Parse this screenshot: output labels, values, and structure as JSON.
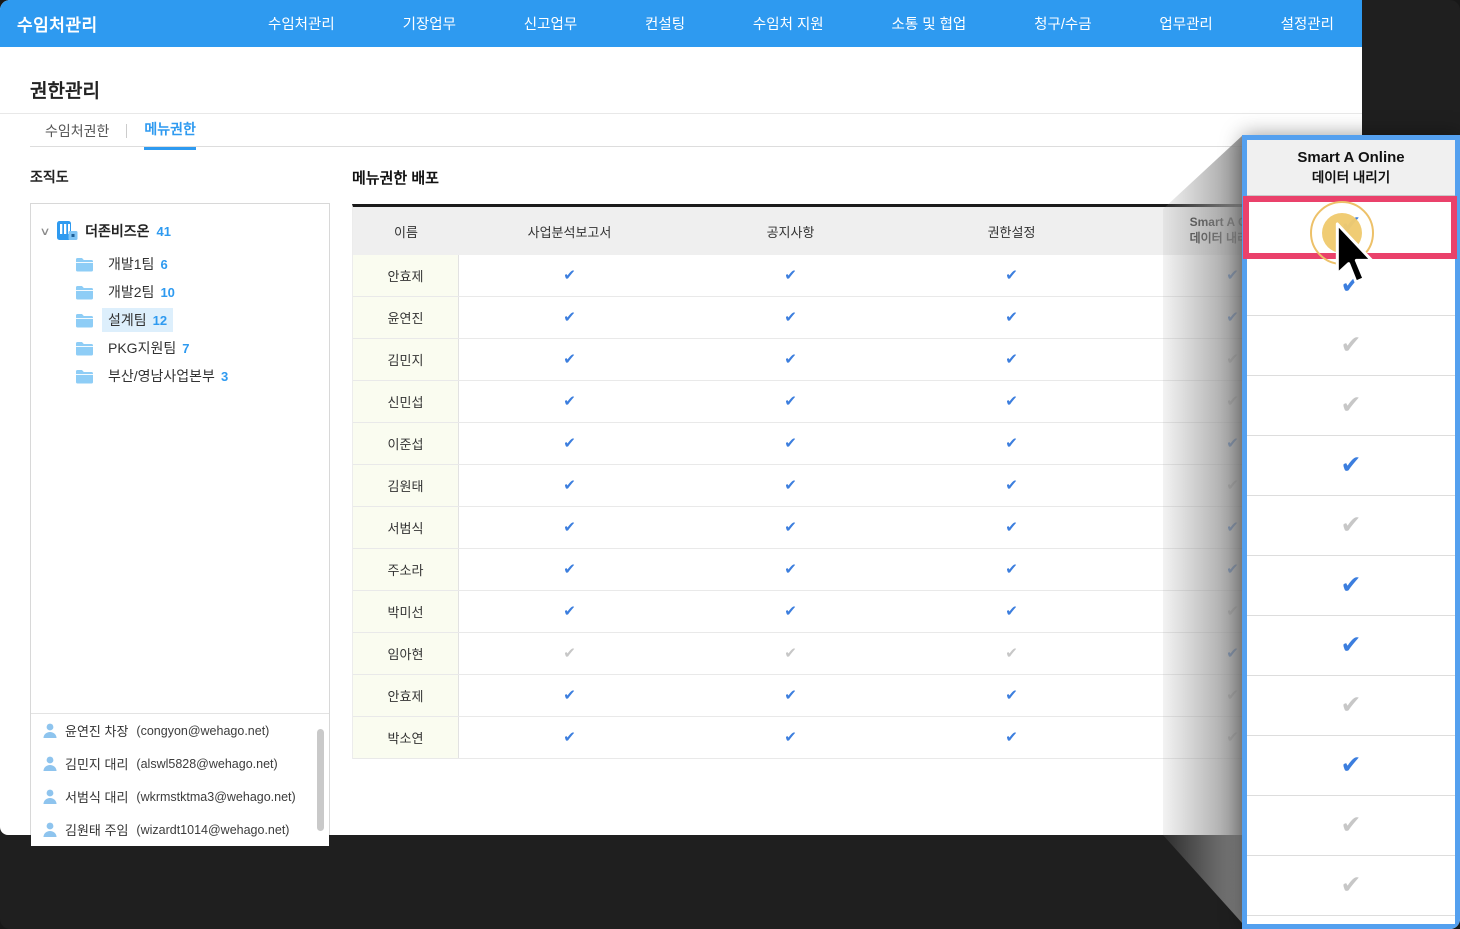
{
  "nav": {
    "brand": "수임처관리",
    "items": [
      "수임처관리",
      "기장업무",
      "신고업무",
      "컨설팅",
      "수임처 지원",
      "소통 및 협업",
      "청구/수금",
      "업무관리",
      "설정관리"
    ]
  },
  "page": {
    "title": "권한관리",
    "tabs": [
      {
        "label": "수임처권한",
        "active": false
      },
      {
        "label": "메뉴권한",
        "active": true
      }
    ]
  },
  "orgtree": {
    "section_label": "조직도",
    "root": {
      "name": "더존비즈온",
      "count": "41"
    },
    "teams": [
      {
        "name": "개발1팀",
        "count": "6",
        "selected": false
      },
      {
        "name": "개발2팀",
        "count": "10",
        "selected": false
      },
      {
        "name": "설계팀",
        "count": "12",
        "selected": true
      },
      {
        "name": "PKG지원팀",
        "count": "7",
        "selected": false
      },
      {
        "name": "부산/영남사업본부",
        "count": "3",
        "selected": false
      }
    ],
    "members": [
      {
        "name": "윤연진 차장",
        "email": "(congyon@wehago.net)"
      },
      {
        "name": "김민지 대리",
        "email": "(alswl5828@wehago.net)"
      },
      {
        "name": "서범식 대리",
        "email": "(wkrmstktma3@wehago.net)"
      },
      {
        "name": "김원태 주임",
        "email": "(wizardt1014@wehago.net)"
      }
    ]
  },
  "table": {
    "title": "메뉴권한 배포",
    "columns": [
      "이름",
      "사업분석보고서",
      "공지사항",
      "권한설정",
      "Smart A Online\n데이터 내리기"
    ],
    "rows": [
      {
        "name": "안효제",
        "perms": [
          true,
          true,
          true,
          true
        ]
      },
      {
        "name": "윤연진",
        "perms": [
          true,
          true,
          true,
          true
        ]
      },
      {
        "name": "김민지",
        "perms": [
          true,
          true,
          true,
          false
        ]
      },
      {
        "name": "신민섭",
        "perms": [
          true,
          true,
          true,
          false
        ]
      },
      {
        "name": "이준섭",
        "perms": [
          true,
          true,
          true,
          true
        ]
      },
      {
        "name": "김원태",
        "perms": [
          true,
          true,
          true,
          false
        ]
      },
      {
        "name": "서범식",
        "perms": [
          true,
          true,
          true,
          true
        ]
      },
      {
        "name": "주소라",
        "perms": [
          true,
          true,
          true,
          true
        ]
      },
      {
        "name": "박미선",
        "perms": [
          true,
          true,
          true,
          false
        ]
      },
      {
        "name": "임아현",
        "perms": [
          false,
          false,
          false,
          true
        ]
      },
      {
        "name": "안효제",
        "perms": [
          true,
          true,
          true,
          false
        ]
      },
      {
        "name": "박소연",
        "perms": [
          true,
          true,
          true,
          false
        ]
      }
    ]
  },
  "magnifier": {
    "header_line1": "Smart A Online",
    "header_line2": "데이터 내리기",
    "checks": [
      true,
      true,
      false,
      false,
      true,
      false,
      true,
      true,
      false,
      true,
      false,
      false
    ],
    "highlighted_row": 0
  },
  "icons": {
    "check_glyph": "✔",
    "chevron_glyph": "∨",
    "root_icon": "building-icon",
    "team_icon": "folder-icon",
    "member_icon": "person-icon",
    "pointer_icon": "cursor-arrow-icon"
  },
  "colors": {
    "nav_background": "#2e9af0",
    "accent_blue": "#2e9af0",
    "magnifier_border": "#54a0ef",
    "highlight_pink": "#ea416b",
    "click_indicator_yellow": "#f0ca70",
    "check_on": "#3c7ede",
    "check_off": "#c7c7c7",
    "name_cell_background": "#fafcf0",
    "backdrop": "#1f1f1f"
  }
}
